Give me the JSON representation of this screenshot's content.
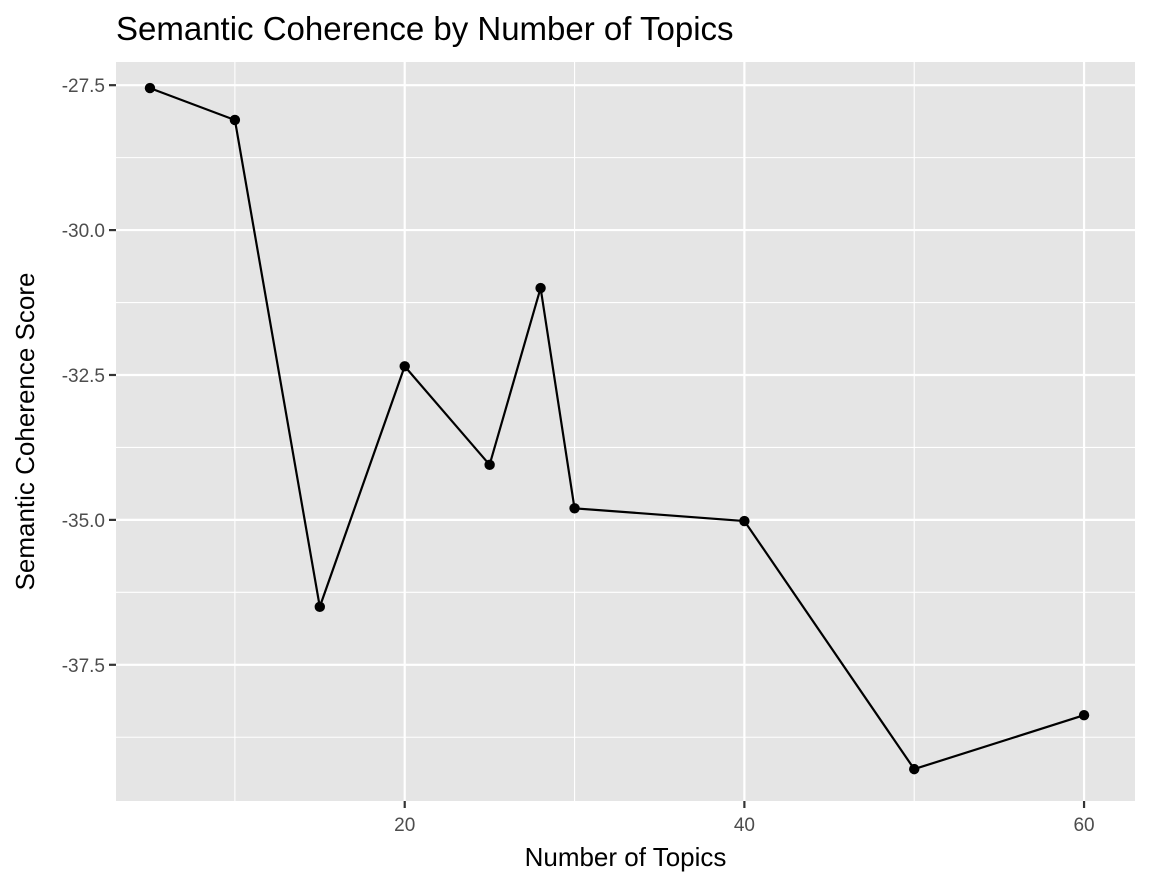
{
  "chart_data": {
    "type": "line",
    "title": "Semantic Coherence by Number of Topics",
    "xlabel": "Number of Topics",
    "ylabel": "Semantic Coherence Score",
    "x": [
      5,
      10,
      15,
      20,
      25,
      28,
      30,
      40,
      50,
      60
    ],
    "y": [
      -27.55,
      -28.1,
      -36.5,
      -32.35,
      -34.05,
      -31.0,
      -34.8,
      -35.02,
      -39.3,
      -38.37
    ],
    "xlim": [
      3,
      63
    ],
    "ylim": [
      -39.85,
      -27.1
    ],
    "xticks": [
      20,
      40,
      60
    ],
    "xtick_labels": [
      "20",
      "40",
      "60"
    ],
    "xminor": [
      10,
      30,
      50
    ],
    "yticks": [
      -27.5,
      -30.0,
      -32.5,
      -35.0,
      -37.5
    ],
    "ytick_labels": [
      "-27.5",
      "-30.0",
      "-32.5",
      "-35.0",
      "-37.5"
    ],
    "yminor": [
      -28.75,
      -31.25,
      -33.75,
      -36.25,
      -38.75
    ],
    "grid": true,
    "legend": "none",
    "colors": {
      "panel": "#e5e5e5",
      "grid": "#ffffff",
      "line": "#000000",
      "tick_text": "#4d4d4d"
    }
  }
}
